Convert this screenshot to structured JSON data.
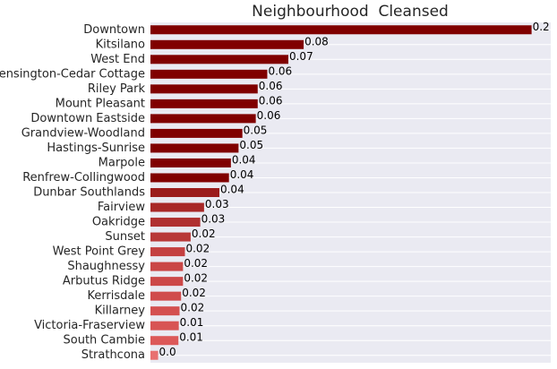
{
  "chart_data": {
    "type": "barh",
    "title": "Neighbourhood  Cleansed",
    "categories": [
      "Downtown",
      "Kitsilano",
      "West End",
      "Kensington-Cedar Cottage",
      "Riley Park",
      "Mount Pleasant",
      "Downtown Eastside",
      "Grandview-Woodland",
      "Hastings-Sunrise",
      "Marpole",
      "Renfrew-Collingwood",
      "Dunbar Southlands",
      "Fairview",
      "Oakridge",
      "Sunset",
      "West Point Grey",
      "Shaughnessy",
      "Arbutus Ridge",
      "Kerrisdale",
      "Killarney",
      "Victoria-Fraserview",
      "South Cambie",
      "Strathcona"
    ],
    "values": [
      0.199,
      0.08,
      0.072,
      0.061,
      0.056,
      0.056,
      0.055,
      0.048,
      0.046,
      0.042,
      0.041,
      0.036,
      0.028,
      0.026,
      0.021,
      0.018,
      0.017,
      0.017,
      0.016,
      0.0152,
      0.0148,
      0.0146,
      0.004
    ],
    "value_labels": [
      "0.2",
      "0.08",
      "0.07",
      "0.06",
      "0.06",
      "0.06",
      "0.06",
      "0.05",
      "0.05",
      "0.04",
      "0.04",
      "0.04",
      "0.03",
      "0.03",
      "0.02",
      "0.02",
      "0.02",
      "0.02",
      "0.02",
      "0.02",
      "0.01",
      "0.01",
      "0.0"
    ],
    "colors": [
      "#800000",
      "#800000",
      "#800000",
      "#800000",
      "#800000",
      "#800000",
      "#800000",
      "#800000",
      "#800000",
      "#800000",
      "#800000",
      "#9b1c1c",
      "#a82828",
      "#b03030",
      "#b83838",
      "#c44040",
      "#ca4646",
      "#cc4848",
      "#d04c4c",
      "#d45050",
      "#d85454",
      "#dc5858",
      "#e87070"
    ],
    "xlim": [
      0,
      0.209
    ],
    "grid": true
  }
}
